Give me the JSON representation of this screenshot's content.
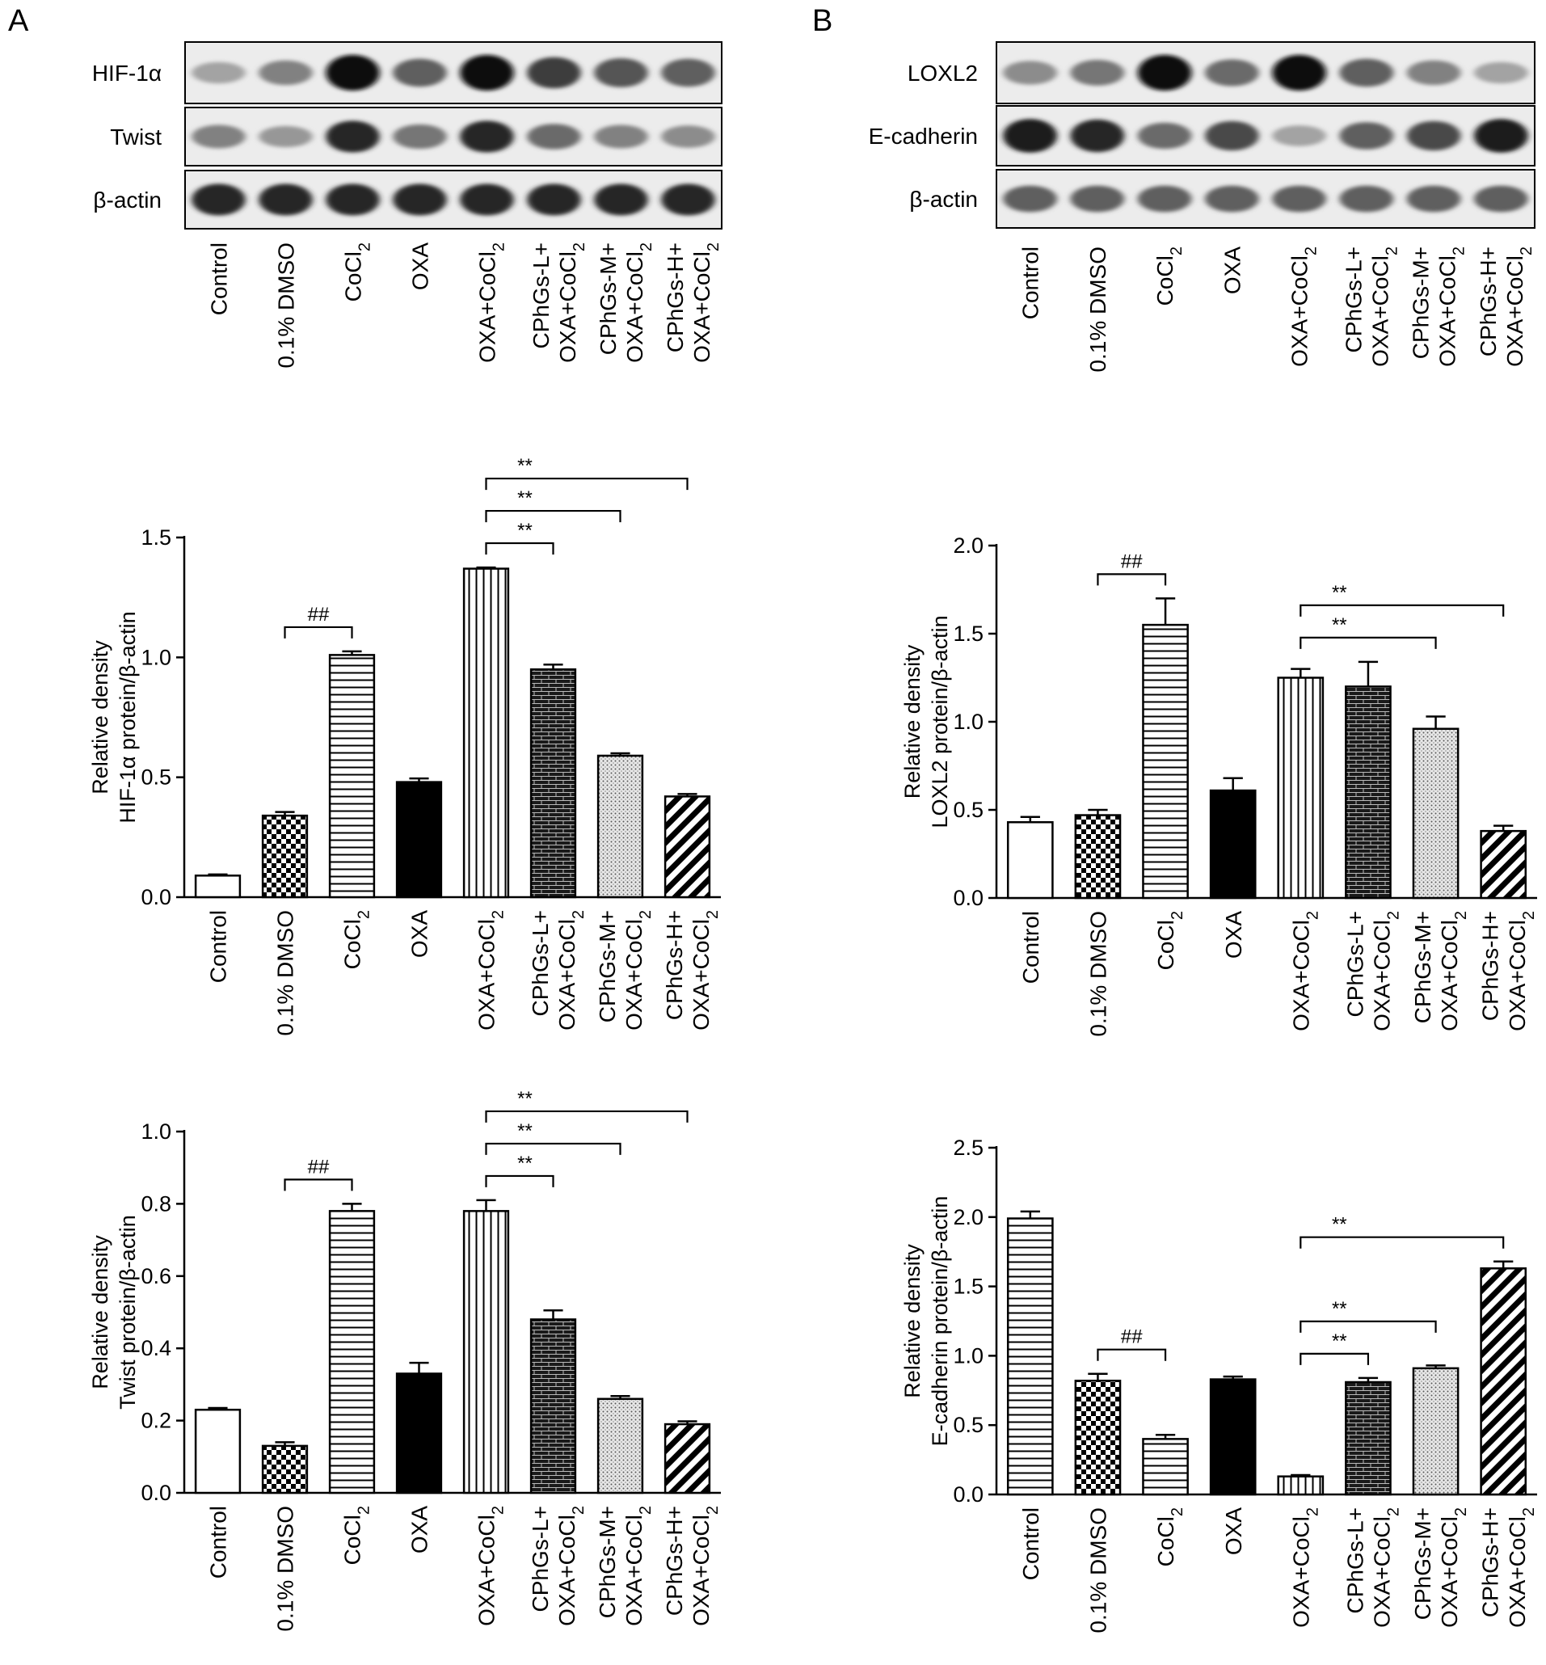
{
  "panels": [
    {
      "letter": "A",
      "blot_rows": [
        {
          "label": "HIF-1α"
        },
        {
          "label": "Twist"
        },
        {
          "label": "β-actin"
        }
      ]
    },
    {
      "letter": "B",
      "blot_rows": [
        {
          "label": "LOXL2"
        },
        {
          "label": "E-cadherin"
        },
        {
          "label": "β-actin"
        }
      ]
    }
  ],
  "lanes": [
    [
      "Control"
    ],
    [
      "0.1% DMSO"
    ],
    [
      "CoCl|2"
    ],
    [
      "OXA"
    ],
    [
      "OXA+CoCl|2"
    ],
    [
      "CPhGs-L+",
      "OXA+CoCl|2"
    ],
    [
      "CPhGs-M+",
      "OXA+CoCl|2"
    ],
    [
      "CPhGs-H+",
      "OXA+CoCl|2"
    ]
  ],
  "bar_patterns": [
    "white",
    "checker",
    "hlines",
    "black",
    "vlines",
    "brick",
    "dots",
    "diag"
  ],
  "blot_intensity": {
    "HIF-1α": [
      0.3,
      0.45,
      0.95,
      0.6,
      0.95,
      0.75,
      0.65,
      0.6
    ],
    "Twist": [
      0.45,
      0.35,
      0.85,
      0.5,
      0.85,
      0.55,
      0.45,
      0.4
    ],
    "β-actin A": [
      0.85,
      0.85,
      0.85,
      0.85,
      0.85,
      0.85,
      0.85,
      0.85
    ],
    "LOXL2": [
      0.4,
      0.5,
      0.95,
      0.55,
      0.95,
      0.6,
      0.45,
      0.3
    ],
    "E-cadherin": [
      0.9,
      0.85,
      0.55,
      0.7,
      0.3,
      0.6,
      0.7,
      0.9
    ],
    "β-actin B": [
      0.6,
      0.6,
      0.6,
      0.6,
      0.6,
      0.6,
      0.6,
      0.6
    ]
  },
  "chart_data": [
    {
      "type": "bar",
      "title": "",
      "ylabel": "Relative density|HIF-1α protein/β-actin",
      "ylim": [
        0,
        1.5
      ],
      "yticks": [
        "0.0",
        "0.5",
        "1.0",
        "1.5"
      ],
      "values": [
        0.09,
        0.34,
        1.01,
        0.48,
        1.37,
        0.95,
        0.59,
        0.42
      ],
      "errors": [
        0.005,
        0.015,
        0.015,
        0.015,
        0.005,
        0.02,
        0.01,
        0.01
      ],
      "brackets": [
        {
          "from": 1,
          "to": 2,
          "label": "##"
        },
        {
          "from": 4,
          "to": 5,
          "label": "**"
        },
        {
          "from": 4,
          "to": 6,
          "label": "**"
        },
        {
          "from": 4,
          "to": 7,
          "label": "**"
        }
      ]
    },
    {
      "type": "bar",
      "title": "",
      "ylabel": "Relative density|Twist protein/β-actin",
      "ylim": [
        0,
        1.0
      ],
      "yticks": [
        "0.0",
        "0.2",
        "0.4",
        "0.6",
        "0.8",
        "1.0"
      ],
      "values": [
        0.23,
        0.13,
        0.78,
        0.33,
        0.78,
        0.48,
        0.26,
        0.19
      ],
      "errors": [
        0.005,
        0.01,
        0.02,
        0.03,
        0.03,
        0.025,
        0.008,
        0.008
      ],
      "brackets": [
        {
          "from": 1,
          "to": 2,
          "label": "##"
        },
        {
          "from": 4,
          "to": 5,
          "label": "**"
        },
        {
          "from": 4,
          "to": 6,
          "label": "**"
        },
        {
          "from": 4,
          "to": 7,
          "label": "**"
        }
      ]
    },
    {
      "type": "bar",
      "title": "",
      "ylabel": "Relative density|LOXL2 protein/β-actin",
      "ylim": [
        0,
        2.0
      ],
      "yticks": [
        "0.0",
        "0.5",
        "1.0",
        "1.5",
        "2.0"
      ],
      "values": [
        0.43,
        0.47,
        1.55,
        0.61,
        1.25,
        1.2,
        0.96,
        0.38
      ],
      "errors": [
        0.03,
        0.03,
        0.15,
        0.07,
        0.05,
        0.14,
        0.07,
        0.03
      ],
      "brackets": [
        {
          "from": 1,
          "to": 2,
          "label": "##"
        },
        {
          "from": 4,
          "to": 6,
          "label": "**"
        },
        {
          "from": 4,
          "to": 7,
          "label": "**"
        }
      ]
    },
    {
      "type": "bar",
      "title": "",
      "ylabel": "Relative density|E-cadherin protein/β-actin",
      "ylim": [
        0,
        2.5
      ],
      "yticks": [
        "0.0",
        "0.5",
        "1.0",
        "1.5",
        "2.0",
        "2.5"
      ],
      "patterns": [
        "hlines",
        "checker",
        "hlines",
        "black",
        "vlines",
        "brick",
        "dots",
        "diag"
      ],
      "values": [
        1.99,
        0.82,
        0.4,
        0.83,
        0.13,
        0.81,
        0.91,
        1.63
      ],
      "errors": [
        0.05,
        0.05,
        0.03,
        0.02,
        0.01,
        0.03,
        0.02,
        0.05
      ],
      "brackets": [
        {
          "from": 1,
          "to": 2,
          "label": "##"
        },
        {
          "from": 4,
          "to": 5,
          "label": "**"
        },
        {
          "from": 4,
          "to": 6,
          "label": "**"
        },
        {
          "from": 4,
          "to": 7,
          "label": "**"
        }
      ]
    }
  ]
}
